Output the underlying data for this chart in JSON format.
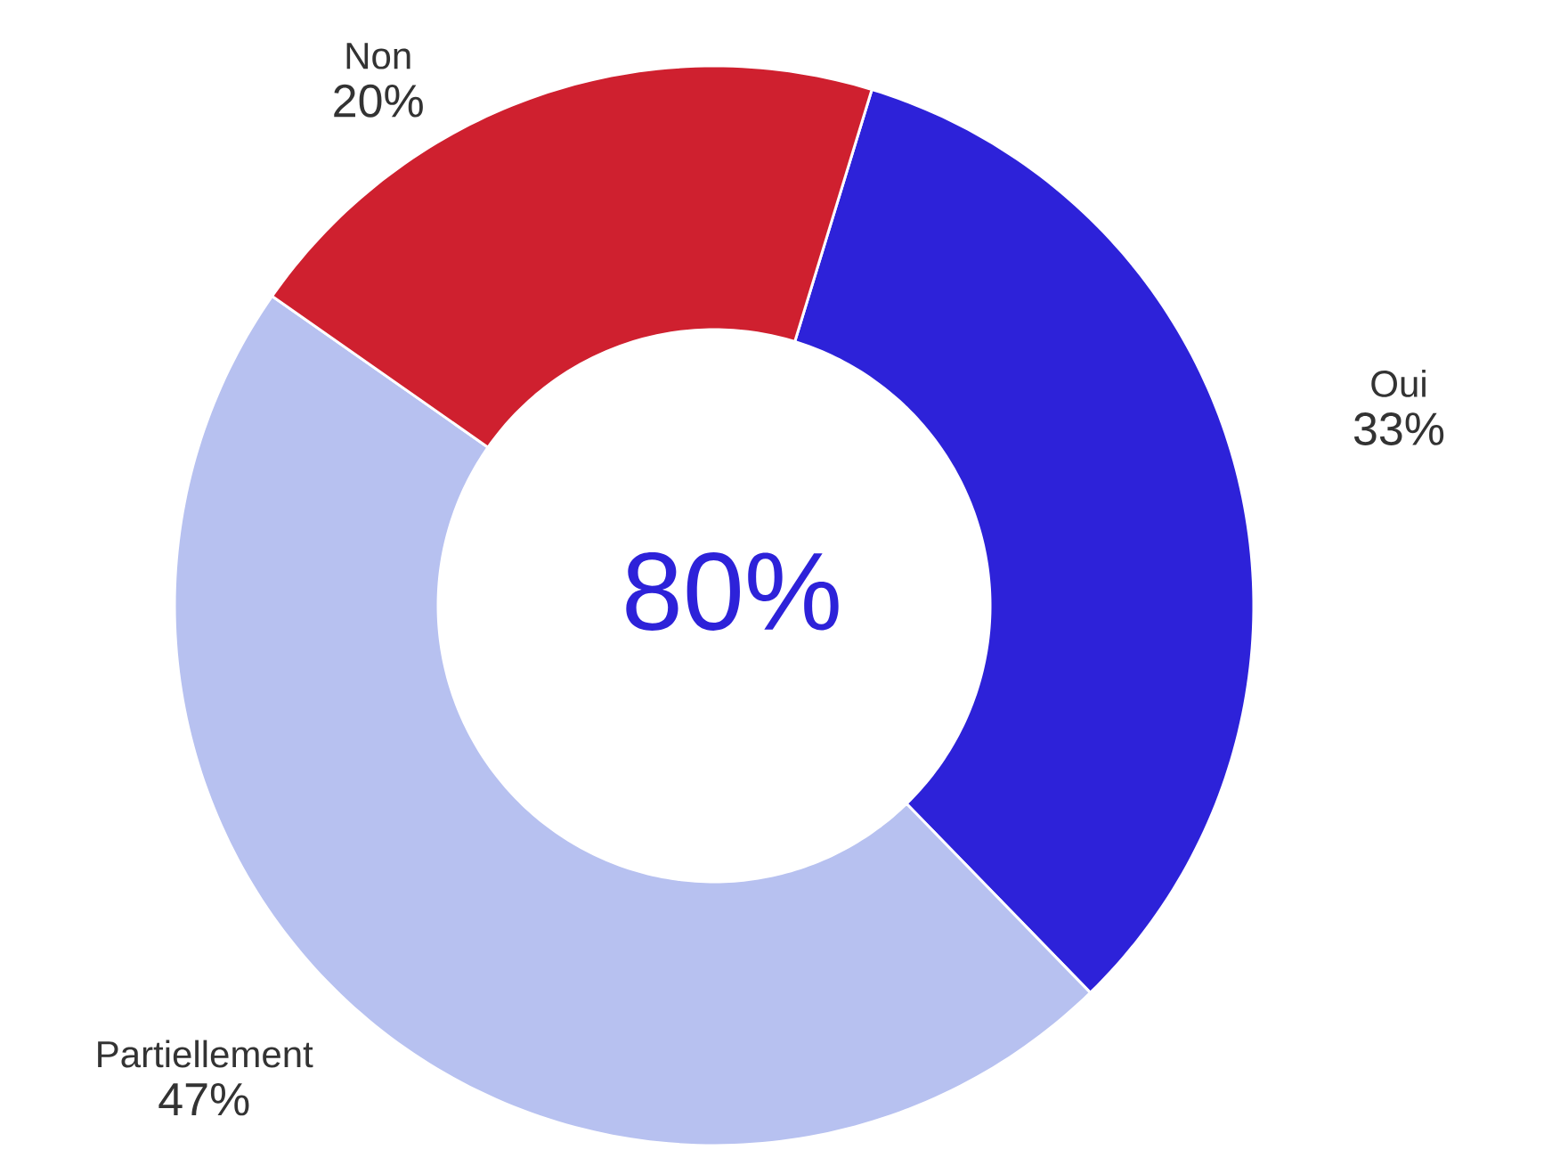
{
  "chart_data": {
    "type": "donut",
    "categories": [
      "Oui",
      "Partiellement",
      "Non"
    ],
    "values": [
      33,
      47,
      20
    ],
    "value_labels": [
      "33%",
      "47%",
      "20%"
    ],
    "colors": [
      "#2d22d9",
      "#b7c1f0",
      "#cf202f"
    ],
    "annotations": [
      "80%"
    ]
  }
}
